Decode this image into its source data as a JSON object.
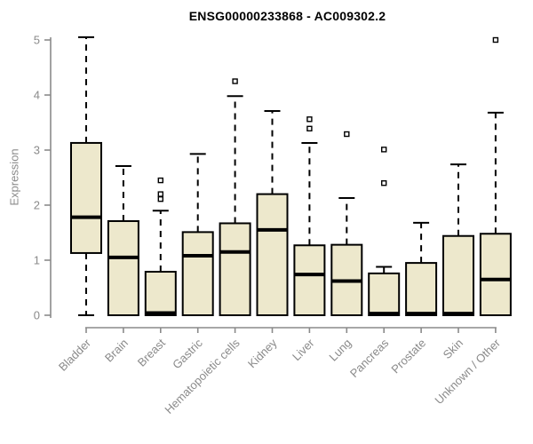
{
  "title": "ENSG00000233868 - AC009302.2",
  "colors": {
    "box_fill": "#EDE8CC",
    "box_stroke": "#000000",
    "axis": "#8a8a8a",
    "text": "#8a8a8a",
    "title": "#000000"
  },
  "chart_data": {
    "type": "boxplot",
    "title": "ENSG00000233868 - AC009302.2",
    "xlabel": "",
    "ylabel": "Expression",
    "ylim": [
      0,
      5
    ],
    "yticks": [
      0,
      1,
      2,
      3,
      4,
      5
    ],
    "grid": false,
    "legend": false,
    "categories": [
      "Bladder",
      "Brain",
      "Breast",
      "Gastric",
      "Hematopoietic cells",
      "Kidney",
      "Liver",
      "Lung",
      "Pancreas",
      "Prostate",
      "Skin",
      "Unknown / Other"
    ],
    "series": [
      {
        "name": "Bladder",
        "whislo": 0,
        "q1": 1.13,
        "med": 1.78,
        "q3": 3.13,
        "whishi": 5.05,
        "outliers": []
      },
      {
        "name": "Brain",
        "whislo": 0,
        "q1": 0,
        "med": 1.05,
        "q3": 1.71,
        "whishi": 2.71,
        "outliers": []
      },
      {
        "name": "Breast",
        "whislo": 0,
        "q1": 0,
        "med": 0.04,
        "q3": 0.79,
        "whishi": 1.9,
        "outliers": [
          2.11,
          2.2,
          2.45
        ]
      },
      {
        "name": "Gastric",
        "whislo": 0,
        "q1": 0,
        "med": 1.08,
        "q3": 1.51,
        "whishi": 2.93,
        "outliers": []
      },
      {
        "name": "Hematopoietic cells",
        "whislo": 0,
        "q1": 0,
        "med": 1.15,
        "q3": 1.67,
        "whishi": 3.98,
        "outliers": [
          4.25
        ]
      },
      {
        "name": "Kidney",
        "whislo": 0,
        "q1": 0,
        "med": 1.55,
        "q3": 2.2,
        "whishi": 3.71,
        "outliers": []
      },
      {
        "name": "Liver",
        "whislo": 0,
        "q1": 0,
        "med": 0.74,
        "q3": 1.27,
        "whishi": 3.13,
        "outliers": [
          3.39,
          3.56
        ]
      },
      {
        "name": "Lung",
        "whislo": 0,
        "q1": 0,
        "med": 0.62,
        "q3": 1.28,
        "whishi": 2.13,
        "outliers": [
          3.29
        ]
      },
      {
        "name": "Pancreas",
        "whislo": 0,
        "q1": 0,
        "med": 0.03,
        "q3": 0.76,
        "whishi": 0.88,
        "outliers": [
          2.4,
          3.01
        ]
      },
      {
        "name": "Prostate",
        "whislo": 0,
        "q1": 0,
        "med": 0.03,
        "q3": 0.95,
        "whishi": 1.68,
        "outliers": []
      },
      {
        "name": "Skin",
        "whislo": 0,
        "q1": 0,
        "med": 0.03,
        "q3": 1.44,
        "whishi": 2.74,
        "outliers": []
      },
      {
        "name": "Unknown / Other",
        "whislo": 0,
        "q1": 0,
        "med": 0.65,
        "q3": 1.48,
        "whishi": 3.68,
        "outliers": [
          5.0
        ]
      }
    ]
  }
}
